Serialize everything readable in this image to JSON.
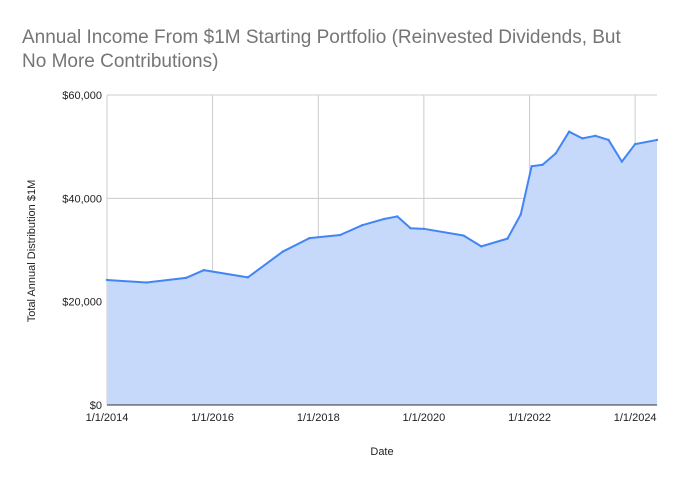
{
  "chart_data": {
    "type": "area",
    "title_lines": [
      "Annual Income From $1M Starting Portfolio (Reinvested Dividends, But",
      "No More Contributions)"
    ],
    "xlabel": "Date",
    "ylabel": "Total Annual Distribution $1M",
    "x_ticks": [
      "1/1/2014",
      "1/1/2016",
      "1/1/2018",
      "1/1/2020",
      "1/1/2022",
      "1/1/2024"
    ],
    "y_ticks": [
      "$0",
      "$20,000",
      "$40,000",
      "$60,000"
    ],
    "xlim": [
      "2014-01-01",
      "2024-05-31"
    ],
    "ylim": [
      0,
      60000
    ],
    "grid": true,
    "legend": "none",
    "colors": {
      "line": "#4285f4",
      "fill": "#c6d9fb",
      "grid": "#cccccc",
      "axis": "#333333"
    },
    "series": [
      {
        "x": [
          "2014-01-01",
          "2014-10-01",
          "2015-07-01",
          "2015-11-01",
          "2016-09-01",
          "2017-05-01",
          "2017-11-01",
          "2018-06-01",
          "2018-11-01",
          "2019-04-01",
          "2019-07-01",
          "2019-10-01",
          "2020-01-01",
          "2020-10-01",
          "2021-02-01",
          "2021-08-01",
          "2021-11-01",
          "2022-01-15",
          "2022-04-01",
          "2022-07-01",
          "2022-10-01",
          "2023-01-01",
          "2023-04-01",
          "2023-07-01",
          "2023-10-01",
          "2024-01-01",
          "2024-05-31"
        ],
        "values": [
          24200,
          23700,
          24600,
          26100,
          24700,
          29700,
          32300,
          32900,
          34800,
          36000,
          36500,
          34200,
          34100,
          32800,
          30700,
          32200,
          36900,
          46200,
          46500,
          48700,
          52900,
          51600,
          52100,
          51300,
          47100,
          50500,
          51300
        ]
      }
    ]
  }
}
